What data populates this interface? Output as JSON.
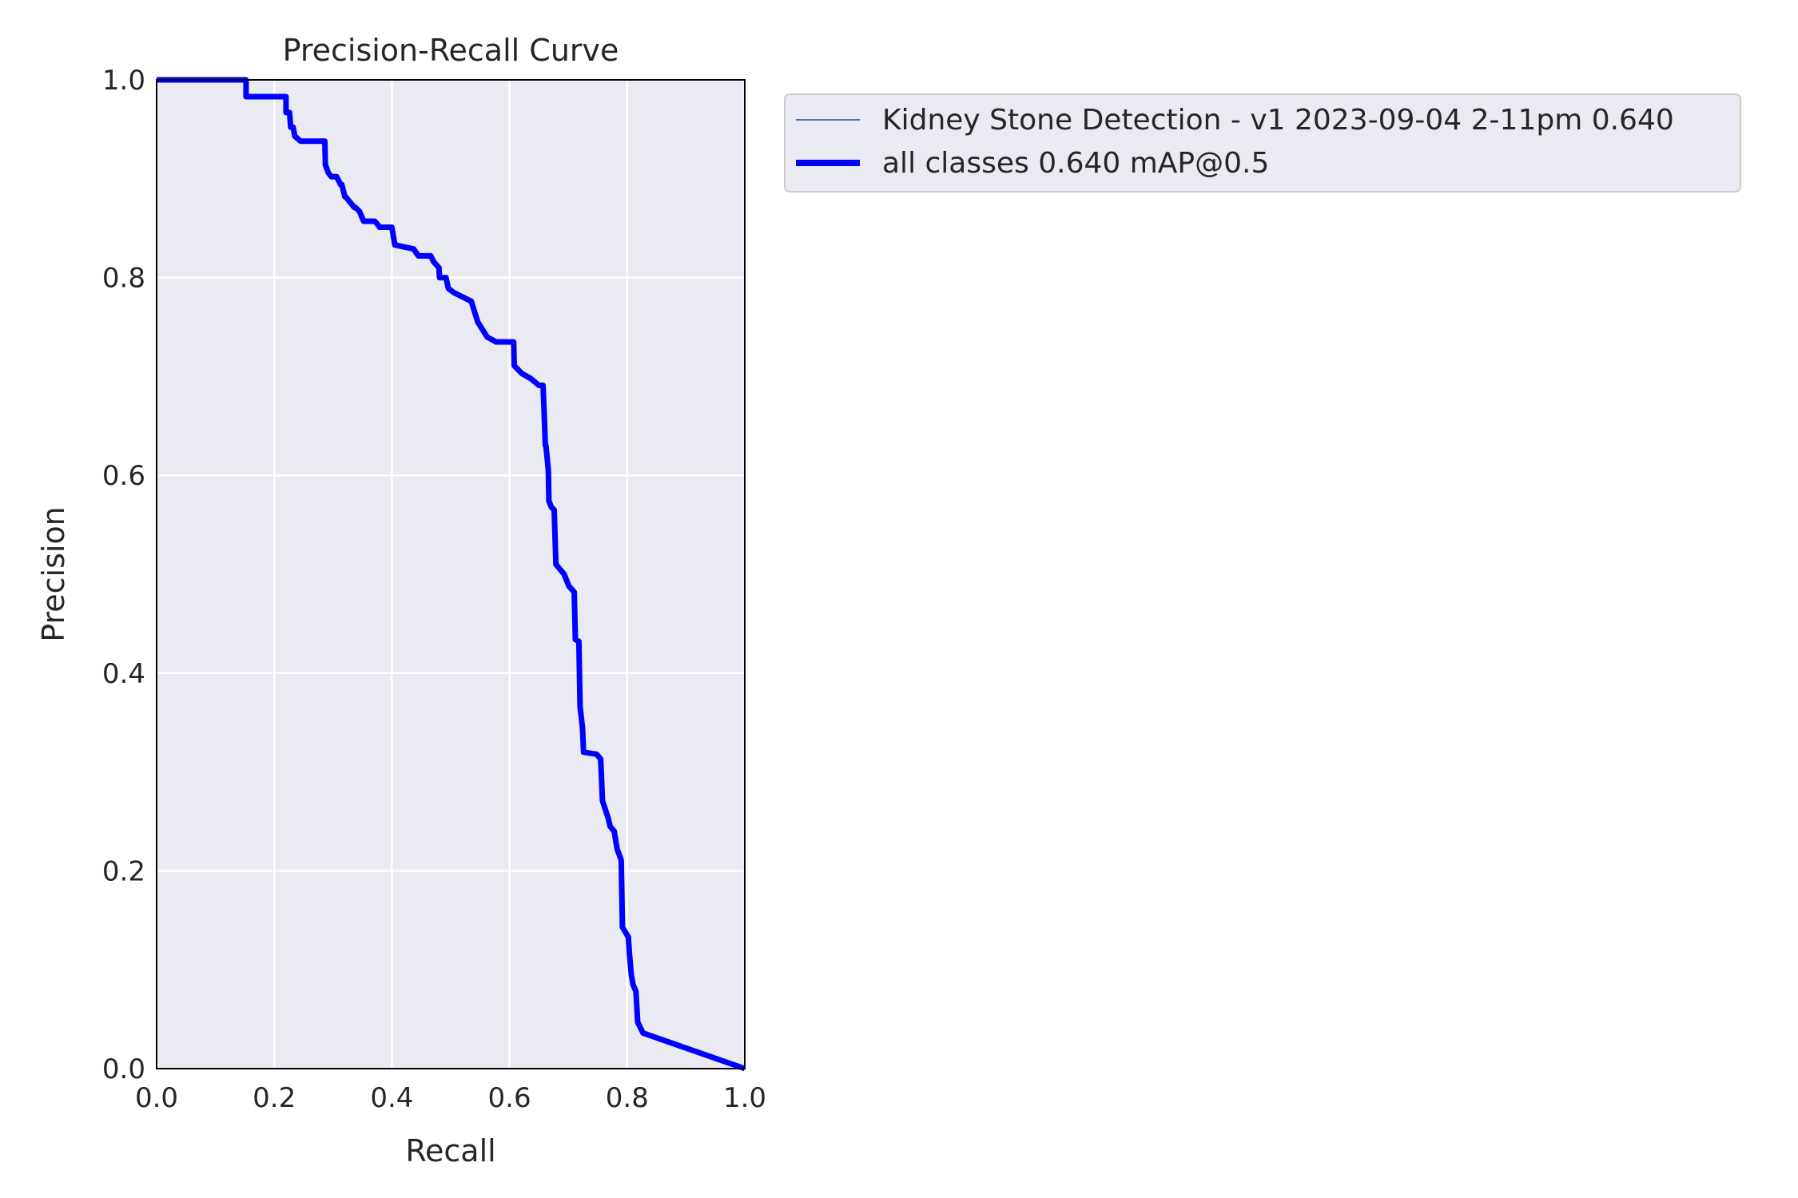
{
  "chart_data": {
    "type": "line",
    "title": "Precision-Recall Curve",
    "xlabel": "Recall",
    "ylabel": "Precision",
    "xlim": [
      0.0,
      1.0
    ],
    "ylim": [
      0.0,
      1.0
    ],
    "xticks": [
      "0.0",
      "0.2",
      "0.4",
      "0.6",
      "0.8",
      "1.0"
    ],
    "yticks": [
      "0.0",
      "0.2",
      "0.4",
      "0.6",
      "0.8",
      "1.0"
    ],
    "grid": true,
    "legend_position": "outside-upper-right",
    "series": [
      {
        "name": "Kidney Stone Detection - v1 2023-09-04 2-11pm 0.640",
        "color": "#4c72b0",
        "x": [
          0.0,
          0.152,
          0.152,
          0.22,
          0.22,
          0.226,
          0.228,
          0.232,
          0.235,
          0.245,
          0.25,
          0.286,
          0.287,
          0.292,
          0.297,
          0.306,
          0.313,
          0.315,
          0.32,
          0.321,
          0.336,
          0.338,
          0.345,
          0.352,
          0.355,
          0.371,
          0.378,
          0.379,
          0.4,
          0.405,
          0.437,
          0.445,
          0.466,
          0.471,
          0.48,
          0.481,
          0.492,
          0.496,
          0.505,
          0.535,
          0.546,
          0.562,
          0.577,
          0.607,
          0.608,
          0.621,
          0.636,
          0.65,
          0.657,
          0.661,
          0.662,
          0.666,
          0.667,
          0.671,
          0.676,
          0.679,
          0.693,
          0.701,
          0.71,
          0.712,
          0.718,
          0.72,
          0.724,
          0.726,
          0.748,
          0.755,
          0.758,
          0.768,
          0.771,
          0.778,
          0.783,
          0.79,
          0.792,
          0.802,
          0.804,
          0.807,
          0.81,
          0.815,
          0.818,
          0.827,
          1.0
        ],
        "y": [
          1.0,
          1.0,
          0.983,
          0.983,
          0.967,
          0.967,
          0.952,
          0.952,
          0.943,
          0.938,
          0.938,
          0.938,
          0.914,
          0.906,
          0.902,
          0.902,
          0.894,
          0.894,
          0.882,
          0.882,
          0.871,
          0.871,
          0.867,
          0.857,
          0.857,
          0.857,
          0.852,
          0.851,
          0.851,
          0.833,
          0.829,
          0.822,
          0.822,
          0.816,
          0.81,
          0.8,
          0.8,
          0.789,
          0.785,
          0.776,
          0.755,
          0.74,
          0.735,
          0.735,
          0.711,
          0.703,
          0.698,
          0.691,
          0.691,
          0.63,
          0.63,
          0.605,
          0.574,
          0.568,
          0.565,
          0.51,
          0.5,
          0.488,
          0.482,
          0.434,
          0.432,
          0.366,
          0.345,
          0.32,
          0.318,
          0.313,
          0.271,
          0.253,
          0.245,
          0.24,
          0.222,
          0.211,
          0.143,
          0.133,
          0.116,
          0.095,
          0.085,
          0.078,
          0.047,
          0.036,
          0.0
        ]
      },
      {
        "name": "all classes 0.640 mAP@0.5",
        "color": "#0000ff",
        "x": [
          0.0,
          0.152,
          0.152,
          0.22,
          0.22,
          0.226,
          0.228,
          0.232,
          0.235,
          0.245,
          0.25,
          0.286,
          0.287,
          0.292,
          0.297,
          0.306,
          0.313,
          0.315,
          0.32,
          0.321,
          0.336,
          0.338,
          0.345,
          0.352,
          0.355,
          0.371,
          0.378,
          0.379,
          0.4,
          0.405,
          0.437,
          0.445,
          0.466,
          0.471,
          0.48,
          0.481,
          0.492,
          0.496,
          0.505,
          0.535,
          0.546,
          0.562,
          0.577,
          0.607,
          0.608,
          0.621,
          0.636,
          0.65,
          0.657,
          0.661,
          0.662,
          0.666,
          0.667,
          0.671,
          0.676,
          0.679,
          0.693,
          0.701,
          0.71,
          0.712,
          0.718,
          0.72,
          0.724,
          0.726,
          0.748,
          0.755,
          0.758,
          0.768,
          0.771,
          0.778,
          0.783,
          0.79,
          0.792,
          0.802,
          0.804,
          0.807,
          0.81,
          0.815,
          0.818,
          0.827,
          1.0
        ],
        "y": [
          1.0,
          1.0,
          0.983,
          0.983,
          0.967,
          0.967,
          0.952,
          0.952,
          0.943,
          0.938,
          0.938,
          0.938,
          0.914,
          0.906,
          0.902,
          0.902,
          0.894,
          0.894,
          0.882,
          0.882,
          0.871,
          0.871,
          0.867,
          0.857,
          0.857,
          0.857,
          0.852,
          0.851,
          0.851,
          0.833,
          0.829,
          0.822,
          0.822,
          0.816,
          0.81,
          0.8,
          0.8,
          0.789,
          0.785,
          0.776,
          0.755,
          0.74,
          0.735,
          0.735,
          0.711,
          0.703,
          0.698,
          0.691,
          0.691,
          0.63,
          0.63,
          0.605,
          0.574,
          0.568,
          0.565,
          0.51,
          0.5,
          0.488,
          0.482,
          0.434,
          0.432,
          0.366,
          0.345,
          0.32,
          0.318,
          0.313,
          0.271,
          0.253,
          0.245,
          0.24,
          0.222,
          0.211,
          0.143,
          0.133,
          0.116,
          0.095,
          0.085,
          0.078,
          0.047,
          0.036,
          0.0
        ]
      }
    ]
  }
}
